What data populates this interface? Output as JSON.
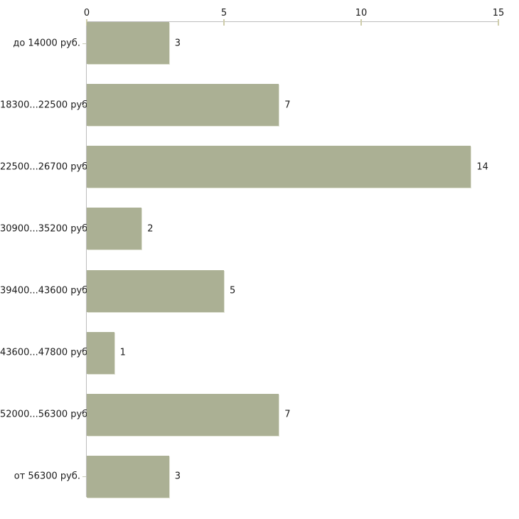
{
  "chart_data": {
    "type": "bar",
    "orientation": "horizontal",
    "title": "",
    "xlabel": "",
    "ylabel": "",
    "categories": [
      "до 14000 руб.",
      "18300...22500 руб.",
      "22500...26700 руб.",
      "30900...35200 руб.",
      "39400...43600 руб.",
      "43600...47800 руб.",
      "52000...56300 руб.",
      "от 56300 руб."
    ],
    "values": [
      3,
      7,
      14,
      2,
      5,
      1,
      7,
      3
    ],
    "value_labels": [
      "3",
      "7",
      "14",
      "2",
      "5",
      "1",
      "7",
      "3"
    ],
    "xlim": [
      0,
      15
    ],
    "x_ticks": [
      0,
      5,
      10,
      15
    ],
    "x_tick_labels": [
      "0",
      "5",
      "10",
      "15"
    ],
    "axis_position": "top",
    "grid": false,
    "legend": false,
    "colors": {
      "bar_fill": "#abb094",
      "bar_edge_highlight": "#e2e4d6",
      "axis_line": "#bdbdbd",
      "tick_mark": "#cfcdab",
      "category_tick": "#c7cab6",
      "text": "#1a1a1a",
      "background": "#ffffff"
    }
  }
}
